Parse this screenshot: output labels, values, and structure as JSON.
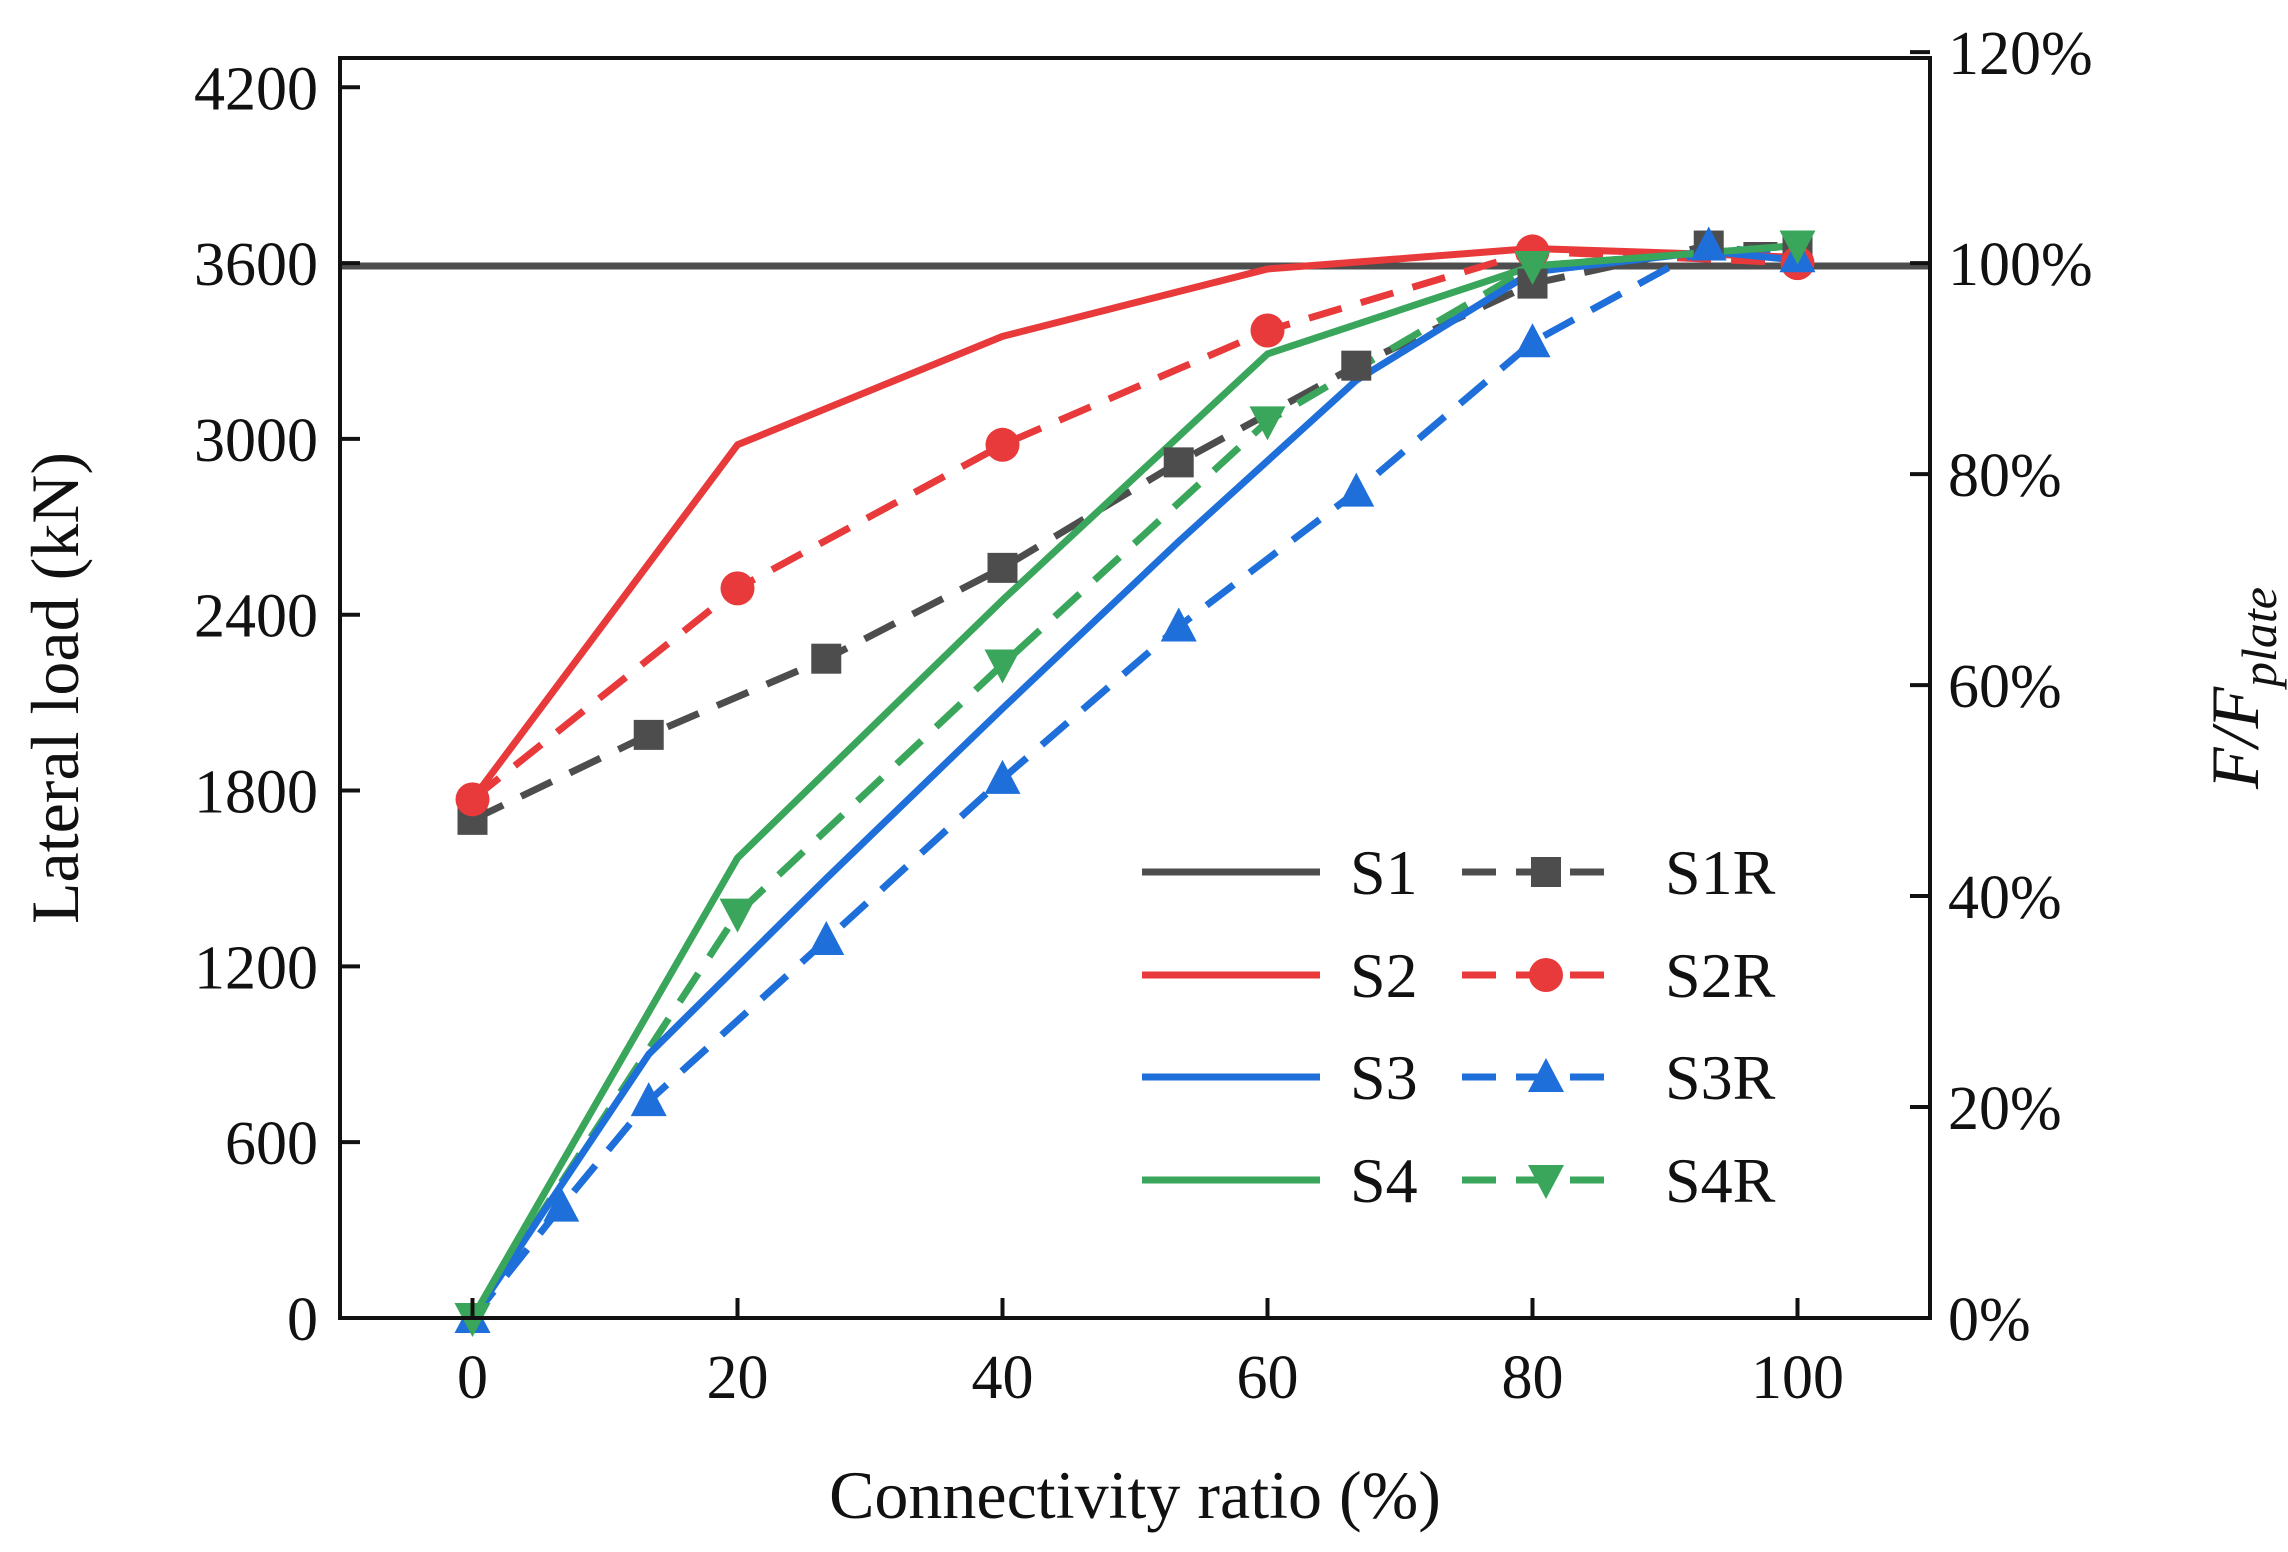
{
  "chart_data": {
    "type": "line",
    "title": "",
    "xlabel": "Connectivity ratio (%)",
    "ylabel": "Lateral load (kN)",
    "y2label_main": "F/F",
    "y2label_sub": "plate",
    "xlim": [
      -10,
      110
    ],
    "ylim": [
      0,
      4300
    ],
    "x_ticks": [
      "0",
      "20",
      "40",
      "60",
      "80",
      "100"
    ],
    "y_ticks": [
      "0",
      "600",
      "1200",
      "1800",
      "2400",
      "3000",
      "3600",
      "4200"
    ],
    "y2_ticks": [
      "0%",
      "20%",
      "40%",
      "60%",
      "80%",
      "100%",
      "120%"
    ],
    "reference_load": 3600,
    "legend_position": "bottom-right",
    "series": [
      {
        "name": "S1",
        "color": "#4d4d4d",
        "dash": "solid",
        "marker": "none",
        "x": [
          0,
          100
        ],
        "y": [
          3590,
          3590
        ]
      },
      {
        "name": "S1R",
        "color": "#4d4d4d",
        "dash": "dashed",
        "marker": "square",
        "x": [
          0,
          13.3,
          26.7,
          40,
          53.3,
          66.7,
          80,
          93.3,
          100
        ],
        "y": [
          1700,
          1990,
          2250,
          2560,
          2920,
          3250,
          3530,
          3660,
          3660
        ]
      },
      {
        "name": "S2",
        "color": "#e8393b",
        "dash": "solid",
        "marker": "none",
        "x": [
          0,
          20,
          40,
          60,
          80,
          100
        ],
        "y": [
          1770,
          2980,
          3350,
          3580,
          3650,
          3620
        ]
      },
      {
        "name": "S2R",
        "color": "#e8393b",
        "dash": "dashed",
        "marker": "circle",
        "x": [
          0,
          20,
          40,
          60,
          80,
          100
        ],
        "y": [
          1770,
          2490,
          2980,
          3370,
          3640,
          3600
        ]
      },
      {
        "name": "S3",
        "color": "#1e6fd9",
        "dash": "solid",
        "marker": "none",
        "x": [
          0,
          13.3,
          26.7,
          40,
          53.3,
          66.7,
          80,
          93.3,
          100
        ],
        "y": [
          0,
          900,
          1500,
          2080,
          2650,
          3200,
          3570,
          3640,
          3610
        ]
      },
      {
        "name": "S3R",
        "color": "#1e6fd9",
        "dash": "dashed",
        "marker": "triangle-up",
        "x": [
          0,
          6.7,
          13.3,
          26.7,
          40,
          53.3,
          66.7,
          80,
          93.3,
          100
        ],
        "y": [
          0,
          380,
          740,
          1290,
          1840,
          2360,
          2820,
          3330,
          3660,
          3620
        ]
      },
      {
        "name": "S4",
        "color": "#3aa65b",
        "dash": "solid",
        "marker": "none",
        "x": [
          0,
          20,
          40,
          60,
          80,
          100
        ],
        "y": [
          0,
          1570,
          2450,
          3290,
          3590,
          3660
        ]
      },
      {
        "name": "S4R",
        "color": "#3aa65b",
        "dash": "dashed",
        "marker": "triangle-down",
        "x": [
          0,
          20,
          40,
          60,
          80,
          100
        ],
        "y": [
          0,
          1380,
          2230,
          3060,
          3590,
          3660
        ]
      }
    ]
  }
}
